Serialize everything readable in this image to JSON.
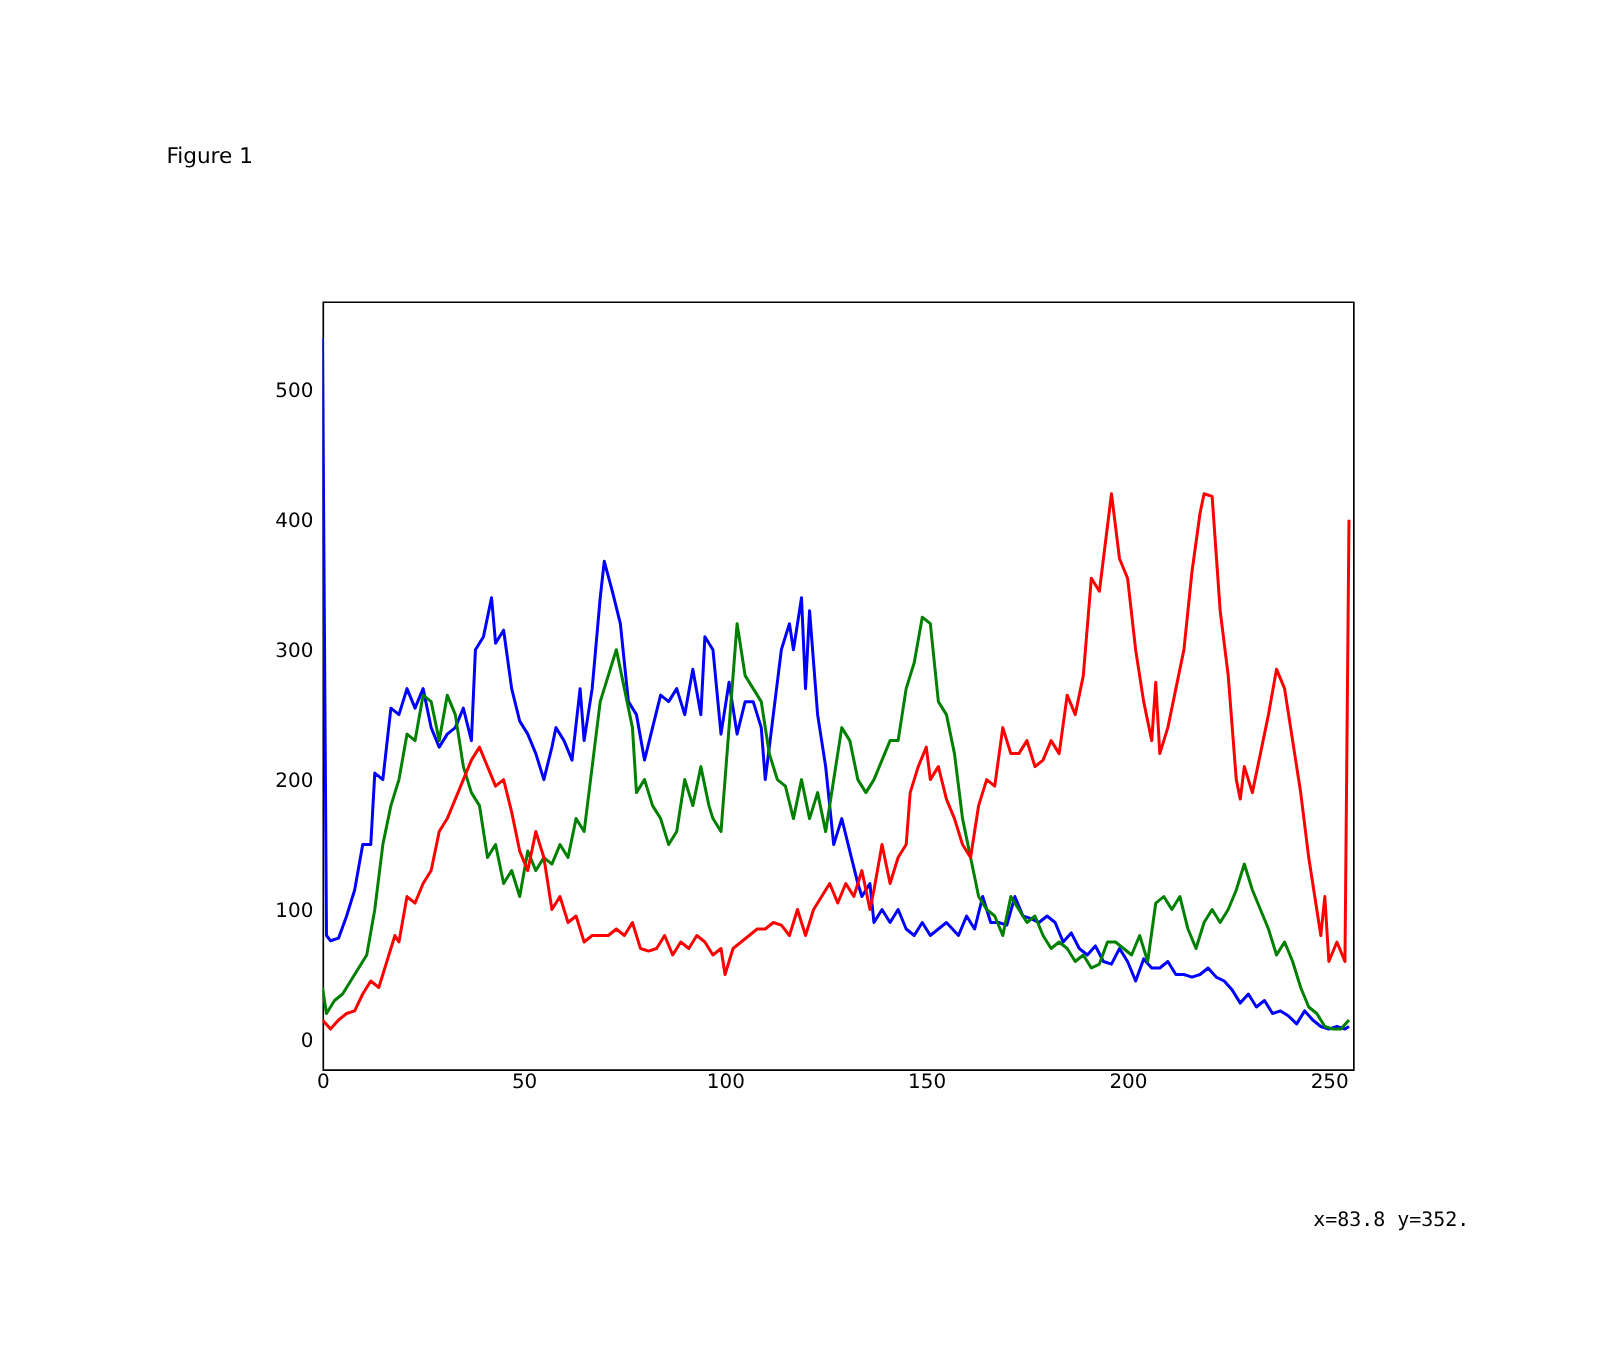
{
  "chart_data": {
    "type": "line",
    "title": "Figure 1",
    "xlim": [
      0,
      256
    ],
    "xticks": [
      0,
      50,
      100,
      150,
      200,
      250
    ],
    "ylim": [
      -23,
      568
    ],
    "yticks": [
      0,
      100,
      200,
      300,
      400,
      500
    ],
    "grid": false,
    "marker": "none",
    "line_style": "solid",
    "annotations": [
      "x=83.8 y=352."
    ],
    "series": [
      {
        "color": "#0000ff",
        "x": [
          0,
          1,
          2,
          4,
          6,
          8,
          10,
          12,
          13,
          15,
          17,
          19,
          21,
          23,
          25,
          27,
          29,
          31,
          33,
          35,
          37,
          38,
          40,
          42,
          43,
          45,
          47,
          49,
          51,
          53,
          55,
          57,
          58,
          60,
          62,
          64,
          65,
          67,
          69,
          70,
          72,
          74,
          76,
          78,
          80,
          82,
          84,
          86,
          88,
          90,
          92,
          94,
          95,
          97,
          99,
          101,
          103,
          105,
          107,
          109,
          110,
          112,
          114,
          116,
          117,
          119,
          120,
          121,
          123,
          125,
          127,
          129,
          131,
          133,
          134,
          136,
          137,
          139,
          141,
          143,
          145,
          147,
          149,
          151,
          153,
          155,
          158,
          160,
          162,
          164,
          166,
          168,
          170,
          172,
          174,
          176,
          178,
          180,
          182,
          184,
          186,
          188,
          190,
          192,
          194,
          196,
          198,
          200,
          202,
          204,
          206,
          208,
          210,
          212,
          214,
          216,
          218,
          220,
          222,
          224,
          226,
          228,
          230,
          232,
          234,
          236,
          238,
          240,
          242,
          244,
          246,
          248,
          250,
          252,
          254,
          255
        ],
        "values": [
          540,
          80,
          76,
          78,
          95,
          115,
          150,
          150,
          205,
          200,
          255,
          250,
          270,
          255,
          270,
          240,
          225,
          235,
          240,
          255,
          230,
          300,
          310,
          340,
          305,
          315,
          270,
          245,
          235,
          220,
          200,
          225,
          240,
          230,
          215,
          270,
          230,
          270,
          340,
          368,
          345,
          320,
          260,
          250,
          215,
          240,
          265,
          260,
          270,
          250,
          285,
          250,
          310,
          300,
          235,
          275,
          235,
          260,
          260,
          240,
          200,
          250,
          300,
          320,
          300,
          340,
          270,
          330,
          250,
          210,
          150,
          170,
          145,
          120,
          110,
          120,
          90,
          100,
          90,
          100,
          85,
          80,
          90,
          80,
          85,
          90,
          80,
          95,
          85,
          110,
          90,
          90,
          88,
          110,
          95,
          93,
          90,
          95,
          90,
          75,
          82,
          70,
          65,
          72,
          60,
          58,
          70,
          60,
          45,
          62,
          55,
          55,
          60,
          50,
          50,
          48,
          50,
          55,
          48,
          45,
          38,
          28,
          35,
          25,
          30,
          20,
          22,
          18,
          12,
          22,
          15,
          10,
          8,
          10,
          8,
          10
        ]
      },
      {
        "color": "#008000",
        "x": [
          0,
          1,
          3,
          5,
          7,
          9,
          11,
          13,
          15,
          17,
          19,
          21,
          23,
          25,
          27,
          29,
          31,
          33,
          35,
          37,
          39,
          41,
          43,
          45,
          47,
          49,
          51,
          53,
          55,
          57,
          59,
          61,
          63,
          65,
          67,
          69,
          71,
          73,
          75,
          77,
          78,
          80,
          82,
          84,
          86,
          88,
          90,
          92,
          94,
          96,
          97,
          99,
          101,
          103,
          105,
          107,
          109,
          111,
          113,
          115,
          117,
          119,
          121,
          123,
          125,
          127,
          129,
          131,
          133,
          135,
          137,
          139,
          141,
          143,
          145,
          147,
          149,
          151,
          153,
          155,
          157,
          159,
          161,
          163,
          165,
          167,
          169,
          171,
          173,
          175,
          177,
          179,
          181,
          183,
          185,
          187,
          189,
          191,
          193,
          195,
          197,
          199,
          201,
          203,
          205,
          207,
          209,
          211,
          213,
          215,
          217,
          219,
          221,
          223,
          225,
          227,
          229,
          231,
          233,
          235,
          237,
          239,
          241,
          243,
          245,
          247,
          249,
          251,
          253,
          255
        ],
        "values": [
          40,
          20,
          30,
          35,
          45,
          55,
          65,
          100,
          150,
          180,
          200,
          235,
          230,
          265,
          260,
          230,
          265,
          250,
          210,
          190,
          180,
          140,
          150,
          120,
          130,
          110,
          145,
          130,
          140,
          135,
          150,
          140,
          170,
          160,
          210,
          260,
          280,
          300,
          270,
          240,
          190,
          200,
          180,
          170,
          150,
          160,
          200,
          180,
          210,
          180,
          170,
          160,
          240,
          320,
          280,
          270,
          260,
          220,
          200,
          195,
          170,
          200,
          170,
          190,
          160,
          200,
          240,
          230,
          200,
          190,
          200,
          215,
          230,
          230,
          270,
          290,
          325,
          320,
          260,
          250,
          220,
          170,
          140,
          110,
          100,
          95,
          80,
          110,
          100,
          90,
          95,
          80,
          70,
          75,
          70,
          60,
          65,
          55,
          58,
          75,
          75,
          70,
          65,
          80,
          60,
          105,
          110,
          100,
          110,
          85,
          70,
          90,
          100,
          90,
          100,
          115,
          135,
          115,
          100,
          85,
          65,
          75,
          60,
          40,
          25,
          20,
          10,
          8,
          8,
          15
        ]
      },
      {
        "color": "#ff0000",
        "x": [
          0,
          2,
          4,
          6,
          8,
          10,
          12,
          14,
          16,
          18,
          19,
          21,
          23,
          25,
          27,
          29,
          31,
          33,
          35,
          37,
          39,
          41,
          43,
          45,
          47,
          49,
          51,
          53,
          55,
          57,
          59,
          61,
          63,
          65,
          67,
          69,
          71,
          73,
          75,
          77,
          79,
          81,
          83,
          85,
          87,
          89,
          91,
          93,
          95,
          97,
          99,
          100,
          102,
          104,
          106,
          108,
          110,
          112,
          114,
          116,
          118,
          120,
          122,
          124,
          126,
          128,
          130,
          132,
          134,
          136,
          137,
          139,
          141,
          143,
          145,
          146,
          148,
          150,
          151,
          153,
          155,
          157,
          159,
          161,
          163,
          165,
          167,
          169,
          171,
          173,
          175,
          177,
          179,
          181,
          183,
          185,
          187,
          189,
          191,
          193,
          195,
          196,
          198,
          200,
          202,
          204,
          206,
          207,
          208,
          210,
          212,
          214,
          216,
          218,
          219,
          221,
          223,
          225,
          227,
          228,
          229,
          231,
          233,
          235,
          237,
          239,
          241,
          243,
          245,
          247,
          248,
          249,
          250,
          252,
          254,
          255
        ],
        "values": [
          15,
          8,
          15,
          20,
          22,
          35,
          45,
          40,
          60,
          80,
          75,
          110,
          105,
          120,
          130,
          160,
          170,
          185,
          200,
          215,
          225,
          210,
          195,
          200,
          175,
          145,
          130,
          160,
          140,
          100,
          110,
          90,
          95,
          75,
          80,
          80,
          80,
          85,
          80,
          90,
          70,
          68,
          70,
          80,
          65,
          75,
          70,
          80,
          75,
          65,
          70,
          50,
          70,
          75,
          80,
          85,
          85,
          90,
          88,
          80,
          100,
          80,
          100,
          110,
          120,
          105,
          120,
          110,
          130,
          100,
          115,
          150,
          120,
          140,
          150,
          190,
          210,
          225,
          200,
          210,
          185,
          170,
          150,
          140,
          180,
          200,
          195,
          240,
          220,
          220,
          230,
          210,
          215,
          230,
          220,
          265,
          250,
          280,
          355,
          345,
          395,
          420,
          370,
          355,
          300,
          260,
          230,
          275,
          220,
          240,
          270,
          300,
          360,
          405,
          420,
          418,
          330,
          280,
          200,
          185,
          210,
          190,
          220,
          250,
          285,
          270,
          230,
          190,
          140,
          100,
          80,
          110,
          60,
          75,
          60,
          400
        ]
      }
    ]
  }
}
